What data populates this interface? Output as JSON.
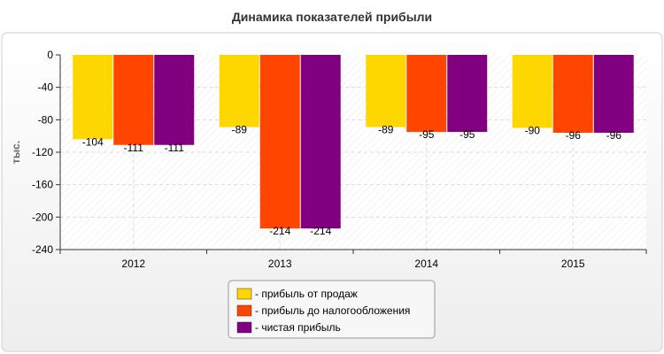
{
  "chart_data": {
    "type": "bar",
    "title": "Динамика показателей прибыли",
    "ylabel": "тыс.",
    "xlabel": "",
    "categories": [
      "2012",
      "2013",
      "2014",
      "2015"
    ],
    "series": [
      {
        "name": "- прибыль от продаж",
        "color": "#FFD700",
        "values": [
          -104,
          -89,
          -89,
          -90
        ]
      },
      {
        "name": "- прибыль до налогообложения",
        "color": "#FF4500",
        "values": [
          -111,
          -214,
          -95,
          -96
        ]
      },
      {
        "name": "- чистая прибыль",
        "color": "#800080",
        "values": [
          -111,
          -214,
          -95,
          -96
        ]
      }
    ],
    "ylim": [
      -240,
      0
    ],
    "yticks": [
      0,
      -40,
      -80,
      -120,
      -160,
      -200,
      -240
    ],
    "grid": true,
    "legend_position": "bottom-center"
  }
}
